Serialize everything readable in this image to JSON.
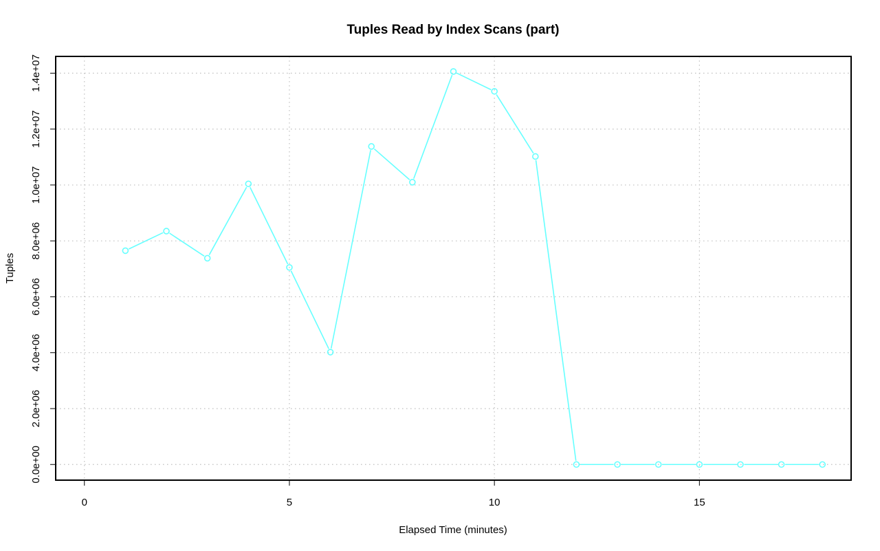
{
  "chart_data": {
    "type": "line",
    "title": "Tuples Read by Index Scans (part)",
    "xlabel": "Elapsed Time (minutes)",
    "ylabel": "Tuples",
    "xlim": [
      -0.7,
      18.7
    ],
    "ylim": [
      -560000,
      14600000
    ],
    "x_ticks": [
      0,
      5,
      10,
      15
    ],
    "x_tick_labels": [
      "0",
      "5",
      "10",
      "15"
    ],
    "y_ticks": [
      0,
      2000000,
      4000000,
      6000000,
      8000000,
      10000000,
      12000000,
      14000000
    ],
    "y_tick_labels": [
      "0.0e+00",
      "2.0e+06",
      "4.0e+06",
      "6.0e+06",
      "8.0e+06",
      "1.0e+07",
      "1.2e+07",
      "1.4e+07"
    ],
    "grid": true,
    "series": [
      {
        "color": "#66ffff",
        "x": [
          1,
          2,
          3,
          4,
          5,
          6,
          7,
          8,
          9,
          10,
          11,
          12,
          13,
          14,
          15,
          16,
          17,
          18
        ],
        "values": [
          7650000,
          8350000,
          7380000,
          10040000,
          7050000,
          4020000,
          11380000,
          10100000,
          14060000,
          13350000,
          11020000,
          0,
          0,
          0,
          0,
          0,
          0,
          0
        ]
      }
    ]
  }
}
